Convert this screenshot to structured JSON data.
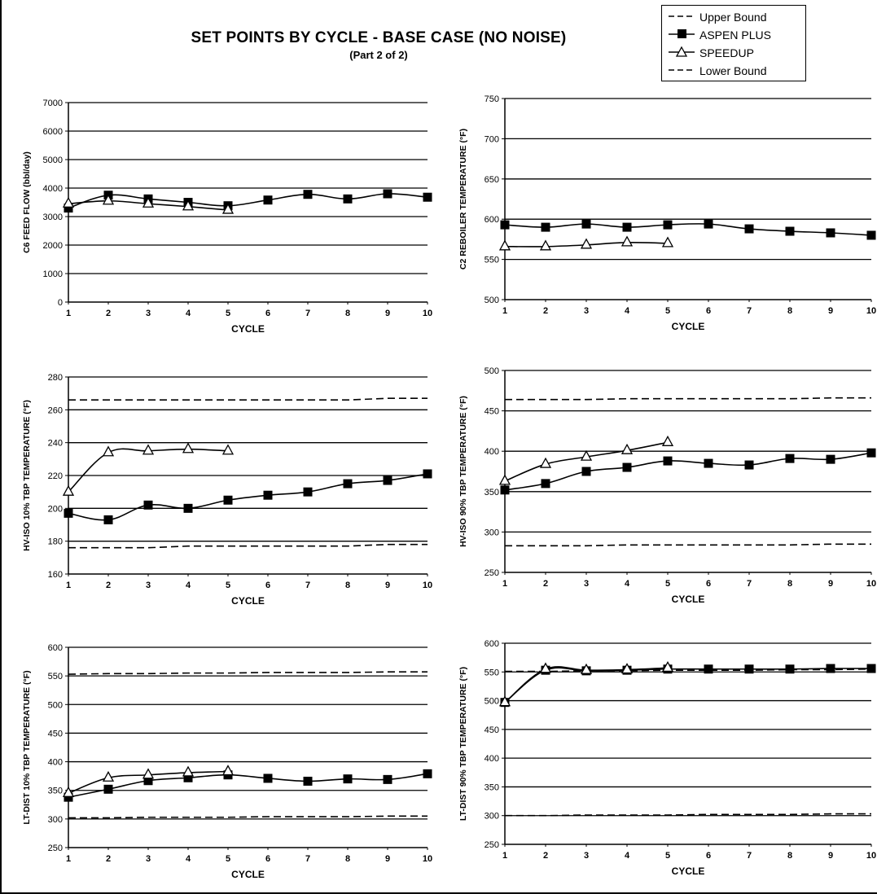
{
  "title": "SET POINTS BY CYCLE - BASE CASE (NO NOISE)",
  "subtitle": "(Part 2 of 2)",
  "legend": [
    {
      "label": "Upper Bound",
      "style": "dashed"
    },
    {
      "label": "ASPEN PLUS",
      "style": "square"
    },
    {
      "label": "SPEEDUP",
      "style": "triangle"
    },
    {
      "label": "Lower Bound",
      "style": "dashed"
    }
  ],
  "chart_data": [
    {
      "type": "line",
      "xlabel": "CYCLE",
      "ylabel": "C6 FEED FLOW (bbl/day)",
      "x": [
        1,
        2,
        3,
        4,
        5,
        6,
        7,
        8,
        9,
        10
      ],
      "ylim": [
        0,
        7000
      ],
      "yticks": [
        0,
        1000,
        2000,
        3000,
        4000,
        5000,
        6000,
        7000
      ],
      "grid": true,
      "series": [
        {
          "name": "ASPEN PLUS",
          "values": [
            3300,
            3750,
            3620,
            3500,
            3380,
            3580,
            3780,
            3620,
            3800,
            3680
          ]
        },
        {
          "name": "SPEEDUP",
          "values": [
            3450,
            3550,
            3450,
            3350,
            3230,
            null,
            null,
            null,
            null,
            null
          ]
        }
      ]
    },
    {
      "type": "line",
      "xlabel": "CYCLE",
      "ylabel": "C2 REBOILER TEMPERATURE (°F)",
      "x": [
        1,
        2,
        3,
        4,
        5,
        6,
        7,
        8,
        9,
        10
      ],
      "ylim": [
        500,
        750
      ],
      "yticks": [
        500,
        550,
        600,
        650,
        700,
        750
      ],
      "grid": true,
      "series": [
        {
          "name": "ASPEN PLUS",
          "values": [
            593,
            590,
            594,
            590,
            593,
            594,
            588,
            585,
            583,
            580
          ]
        },
        {
          "name": "SPEEDUP",
          "values": [
            566,
            566,
            568,
            571,
            570,
            null,
            null,
            null,
            null,
            null
          ]
        }
      ]
    },
    {
      "type": "line",
      "xlabel": "CYCLE",
      "ylabel": "HV-ISO 10% TBP TEMPERATURE (°F)",
      "x": [
        1,
        2,
        3,
        4,
        5,
        6,
        7,
        8,
        9,
        10
      ],
      "ylim": [
        160,
        280
      ],
      "yticks": [
        160,
        180,
        200,
        220,
        240,
        260,
        280
      ],
      "grid": true,
      "series": [
        {
          "name": "Upper Bound",
          "values": [
            266,
            266,
            266,
            266,
            266,
            266,
            266,
            266,
            267,
            267
          ]
        },
        {
          "name": "ASPEN PLUS",
          "values": [
            197,
            193,
            202,
            200,
            205,
            208,
            210,
            215,
            217,
            221
          ]
        },
        {
          "name": "SPEEDUP",
          "values": [
            210,
            234,
            235,
            236,
            235,
            null,
            null,
            null,
            null,
            null
          ]
        },
        {
          "name": "Lower Bound",
          "values": [
            176,
            176,
            176,
            177,
            177,
            177,
            177,
            177,
            178,
            178
          ]
        }
      ]
    },
    {
      "type": "line",
      "xlabel": "CYCLE",
      "ylabel": "HV-ISO 90% TBP TEMPERATURE (°F)",
      "x": [
        1,
        2,
        3,
        4,
        5,
        6,
        7,
        8,
        9,
        10
      ],
      "ylim": [
        250,
        500
      ],
      "yticks": [
        250,
        300,
        350,
        400,
        450,
        500
      ],
      "grid": true,
      "series": [
        {
          "name": "Upper Bound",
          "values": [
            464,
            464,
            464,
            465,
            465,
            465,
            465,
            465,
            466,
            466
          ]
        },
        {
          "name": "ASPEN PLUS",
          "values": [
            352,
            360,
            375,
            380,
            388,
            385,
            383,
            391,
            390,
            398
          ]
        },
        {
          "name": "SPEEDUP",
          "values": [
            363,
            384,
            393,
            401,
            411,
            null,
            null,
            null,
            null,
            null
          ]
        },
        {
          "name": "Lower Bound",
          "values": [
            283,
            283,
            283,
            284,
            284,
            284,
            284,
            284,
            285,
            285
          ]
        }
      ]
    },
    {
      "type": "line",
      "xlabel": "CYCLE",
      "ylabel": "LT-DIST 10% TBP TEMPERATURE (°F)",
      "x": [
        1,
        2,
        3,
        4,
        5,
        6,
        7,
        8,
        9,
        10
      ],
      "ylim": [
        250,
        600
      ],
      "yticks": [
        250,
        300,
        350,
        400,
        450,
        500,
        550,
        600
      ],
      "grid": true,
      "series": [
        {
          "name": "Upper Bound",
          "values": [
            553,
            554,
            554,
            555,
            555,
            556,
            556,
            556,
            557,
            557
          ]
        },
        {
          "name": "ASPEN PLUS",
          "values": [
            338,
            352,
            367,
            372,
            377,
            371,
            366,
            370,
            369,
            379
          ]
        },
        {
          "name": "SPEEDUP",
          "values": [
            345,
            372,
            377,
            381,
            383,
            null,
            null,
            null,
            null,
            null
          ]
        },
        {
          "name": "Lower Bound",
          "values": [
            302,
            302,
            303,
            303,
            303,
            304,
            304,
            304,
            305,
            305
          ]
        }
      ]
    },
    {
      "type": "line",
      "xlabel": "CYCLE",
      "ylabel": "LT-DIST 90% TBP TEMPERATURE (°F)",
      "x": [
        1,
        2,
        3,
        4,
        5,
        6,
        7,
        8,
        9,
        10
      ],
      "ylim": [
        250,
        600
      ],
      "yticks": [
        250,
        300,
        350,
        400,
        450,
        500,
        550,
        600
      ],
      "grid": true,
      "series": [
        {
          "name": "Upper Bound",
          "values": [
            551,
            551,
            552,
            552,
            553,
            553,
            553,
            554,
            554,
            555
          ]
        },
        {
          "name": "ASPEN PLUS",
          "values": [
            497,
            553,
            552,
            553,
            555,
            555,
            555,
            555,
            556,
            556
          ]
        },
        {
          "name": "SPEEDUP",
          "values": [
            497,
            555,
            553,
            554,
            557,
            null,
            null,
            null,
            null,
            null
          ]
        },
        {
          "name": "Lower Bound",
          "values": [
            300,
            300,
            301,
            301,
            301,
            302,
            302,
            302,
            303,
            303
          ]
        }
      ]
    }
  ]
}
